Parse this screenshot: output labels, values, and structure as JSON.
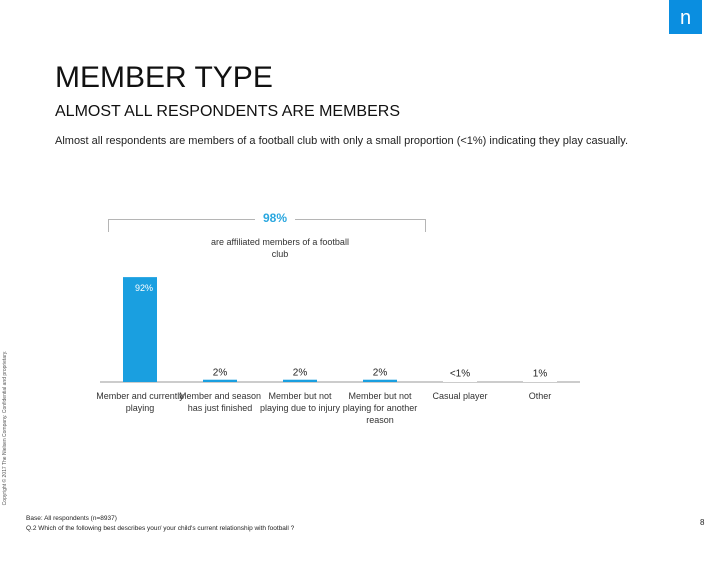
{
  "brand": {
    "logo_text": "n",
    "color": "#0a8ee0"
  },
  "header": {
    "title": "MEMBER TYPE",
    "subtitle": "ALMOST ALL RESPONDENTS ARE MEMBERS",
    "description": "Almost all respondents are members of a football club with only a small proportion (<1%) indicating they play casually."
  },
  "side_note": "Copyright © 2017 The Nielsen Company. Confidential and proprietary.",
  "annotation": {
    "total_label": "98%",
    "total_text": "are affiliated members of a football club",
    "label_color": "#2aa7df"
  },
  "chart_data": {
    "type": "bar",
    "categories": [
      "Member and currently playing",
      "Member and season has just finished",
      "Member but not playing due to injury",
      "Member but not playing for another reason",
      "Casual player",
      "Other"
    ],
    "values": [
      92,
      2,
      2,
      2,
      0.5,
      1
    ],
    "data_labels": [
      "92%",
      "2%",
      "2%",
      "2%",
      "<1%",
      "1%"
    ],
    "bar_colors": [
      "#1a9fe0",
      "#1a9fe0",
      "#1a9fe0",
      "#1a9fe0",
      "#ffffff",
      "#ffffff"
    ],
    "ylim": [
      0,
      100
    ],
    "grid": false,
    "title": "",
    "xlabel": "",
    "ylabel": ""
  },
  "footer": {
    "base": "Base: All respondents (n=8937)",
    "question": "Q.2 Which of the following best describes your/ your child's current relationship with football ?"
  },
  "page_number": "8"
}
